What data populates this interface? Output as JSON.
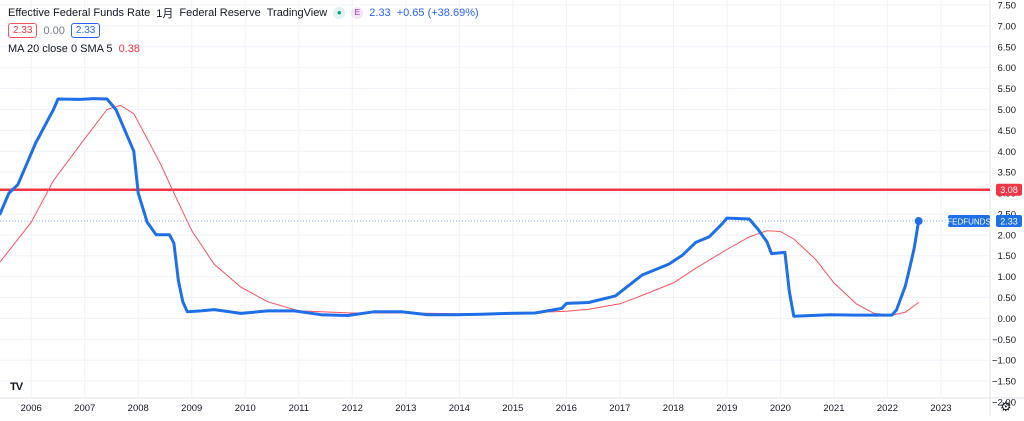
{
  "legend": {
    "title": "Effective Federal Funds Rate",
    "interval": "1月",
    "source": "Federal Reserve",
    "platform": "TradingView",
    "teal_icon": "circle-dot-icon",
    "e_badge": "E",
    "last_value": "2.33",
    "change": "+0.65 (+38.69%)",
    "sell_value": "2.33",
    "spread": "0.00",
    "buy_value": "2.33",
    "indicator_label": "MA 20 close 0 SMA 5",
    "indicator_value": "0.38"
  },
  "colors": {
    "series": "#1e6fe8",
    "ma": "#f7525f",
    "hline": "#f23645",
    "grid": "#f0f3fa",
    "text": "#131722"
  },
  "logo_text": "TV",
  "settings_icon": "gear-icon",
  "chart_data": {
    "type": "line",
    "x_label_years": [
      "2006",
      "2007",
      "2008",
      "2009",
      "2010",
      "2011",
      "2012",
      "2013",
      "2014",
      "2015",
      "2016",
      "2017",
      "2018",
      "2019",
      "2020",
      "2021",
      "2022",
      "2023"
    ],
    "y_ticks": [
      "7.50",
      "7.00",
      "6.50",
      "6.00",
      "5.50",
      "5.00",
      "4.50",
      "4.00",
      "3.50",
      "3.00",
      "2.50",
      "2.00",
      "1.50",
      "1.00",
      "0.50",
      "0.00",
      "−0.50",
      "−1.00",
      "−1.50",
      "−2.00"
    ],
    "ylim": [
      -2.0,
      7.5
    ],
    "xlim": [
      "2005-06-01",
      "2023-12-01"
    ],
    "grid": true,
    "horizontal_line": {
      "value": 3.08,
      "label": "3.08"
    },
    "last_point": {
      "date": "2022-08-01",
      "value": 2.33,
      "label": "FEDFUNDS",
      "value_label": "2.33"
    },
    "series": [
      {
        "name": "FEDFUNDS",
        "points": [
          [
            "2005-06-01",
            2.5
          ],
          [
            "2005-08-01",
            3.0
          ],
          [
            "2005-10-01",
            3.2
          ],
          [
            "2005-12-01",
            3.7
          ],
          [
            "2006-02-01",
            4.2
          ],
          [
            "2006-04-01",
            4.6
          ],
          [
            "2006-06-01",
            5.0
          ],
          [
            "2006-07-01",
            5.25
          ],
          [
            "2006-12-01",
            5.24
          ],
          [
            "2007-03-01",
            5.26
          ],
          [
            "2007-06-01",
            5.25
          ],
          [
            "2007-08-01",
            5.0
          ],
          [
            "2007-10-01",
            4.5
          ],
          [
            "2007-12-01",
            4.0
          ],
          [
            "2008-01-01",
            3.0
          ],
          [
            "2008-03-01",
            2.3
          ],
          [
            "2008-05-01",
            2.0
          ],
          [
            "2008-08-01",
            2.0
          ],
          [
            "2008-09-01",
            1.8
          ],
          [
            "2008-10-01",
            0.9
          ],
          [
            "2008-11-01",
            0.4
          ],
          [
            "2008-12-01",
            0.16
          ],
          [
            "2009-03-01",
            0.18
          ],
          [
            "2009-06-01",
            0.21
          ],
          [
            "2009-12-01",
            0.12
          ],
          [
            "2010-06-01",
            0.18
          ],
          [
            "2010-12-01",
            0.18
          ],
          [
            "2011-06-01",
            0.09
          ],
          [
            "2011-12-01",
            0.07
          ],
          [
            "2012-06-01",
            0.16
          ],
          [
            "2012-12-01",
            0.16
          ],
          [
            "2013-06-01",
            0.09
          ],
          [
            "2013-12-01",
            0.09
          ],
          [
            "2014-06-01",
            0.1
          ],
          [
            "2014-12-01",
            0.12
          ],
          [
            "2015-06-01",
            0.13
          ],
          [
            "2015-12-01",
            0.24
          ],
          [
            "2016-01-01",
            0.36
          ],
          [
            "2016-06-01",
            0.38
          ],
          [
            "2016-12-01",
            0.54
          ],
          [
            "2017-03-01",
            0.79
          ],
          [
            "2017-06-01",
            1.04
          ],
          [
            "2017-12-01",
            1.3
          ],
          [
            "2018-03-01",
            1.51
          ],
          [
            "2018-06-01",
            1.82
          ],
          [
            "2018-09-01",
            1.95
          ],
          [
            "2018-12-01",
            2.27
          ],
          [
            "2019-01-01",
            2.4
          ],
          [
            "2019-06-01",
            2.38
          ],
          [
            "2019-08-01",
            2.13
          ],
          [
            "2019-10-01",
            1.83
          ],
          [
            "2019-11-01",
            1.55
          ],
          [
            "2020-02-01",
            1.58
          ],
          [
            "2020-03-01",
            0.65
          ],
          [
            "2020-04-01",
            0.05
          ],
          [
            "2020-12-01",
            0.09
          ],
          [
            "2021-06-01",
            0.08
          ],
          [
            "2021-12-01",
            0.08
          ],
          [
            "2022-02-01",
            0.08
          ],
          [
            "2022-03-01",
            0.2
          ],
          [
            "2022-05-01",
            0.77
          ],
          [
            "2022-06-01",
            1.21
          ],
          [
            "2022-07-01",
            1.68
          ],
          [
            "2022-08-01",
            2.33
          ]
        ]
      },
      {
        "name": "MA 20 close 0 SMA 5",
        "points": [
          [
            "2005-06-01",
            1.35
          ],
          [
            "2006-01-01",
            2.3
          ],
          [
            "2006-06-01",
            3.3
          ],
          [
            "2007-01-01",
            4.3
          ],
          [
            "2007-06-01",
            5.0
          ],
          [
            "2007-09-01",
            5.1
          ],
          [
            "2007-12-01",
            4.9
          ],
          [
            "2008-03-01",
            4.3
          ],
          [
            "2008-06-01",
            3.7
          ],
          [
            "2008-09-01",
            3.0
          ],
          [
            "2009-01-01",
            2.1
          ],
          [
            "2009-06-01",
            1.3
          ],
          [
            "2009-12-01",
            0.75
          ],
          [
            "2010-06-01",
            0.4
          ],
          [
            "2011-01-01",
            0.18
          ],
          [
            "2012-01-01",
            0.13
          ],
          [
            "2013-01-01",
            0.13
          ],
          [
            "2014-01-01",
            0.11
          ],
          [
            "2015-01-01",
            0.12
          ],
          [
            "2016-01-01",
            0.17
          ],
          [
            "2016-06-01",
            0.22
          ],
          [
            "2017-01-01",
            0.35
          ],
          [
            "2017-06-01",
            0.55
          ],
          [
            "2018-01-01",
            0.85
          ],
          [
            "2018-06-01",
            1.2
          ],
          [
            "2019-01-01",
            1.65
          ],
          [
            "2019-06-01",
            1.95
          ],
          [
            "2019-10-01",
            2.1
          ],
          [
            "2020-01-01",
            2.08
          ],
          [
            "2020-04-01",
            1.9
          ],
          [
            "2020-09-01",
            1.4
          ],
          [
            "2021-01-01",
            0.85
          ],
          [
            "2021-06-01",
            0.35
          ],
          [
            "2021-10-01",
            0.12
          ],
          [
            "2022-02-01",
            0.08
          ],
          [
            "2022-05-01",
            0.15
          ],
          [
            "2022-08-01",
            0.38
          ]
        ]
      }
    ]
  }
}
